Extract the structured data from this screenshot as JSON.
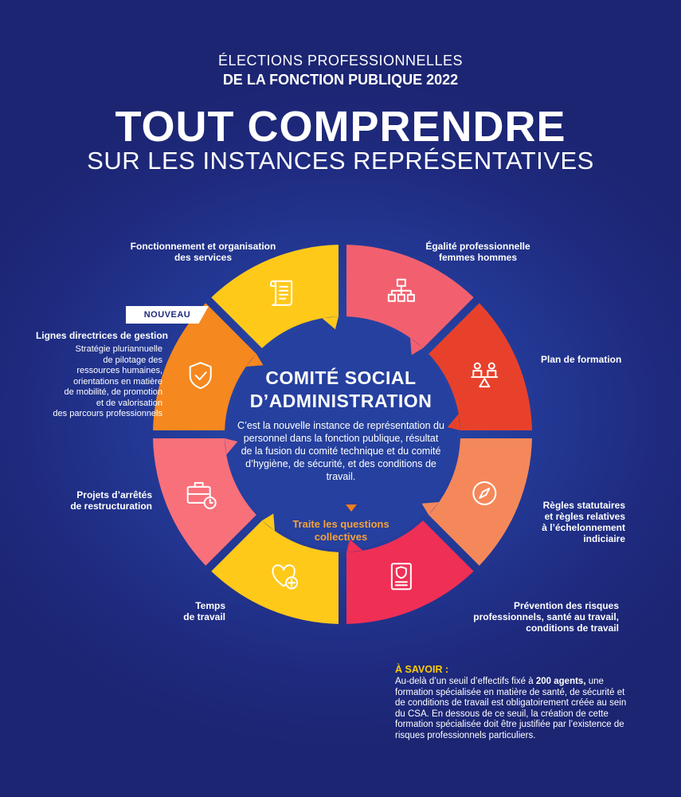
{
  "header": {
    "line1": "ÉLECTIONS PROFESSIONNELLES",
    "line2": "DE LA FONCTION PUBLIQUE 2022",
    "title": "TOUT COMPRENDRE",
    "subtitle": "SUR LES INSTANCES REPRÉSENTATIVES"
  },
  "center": {
    "title_line1": "COMITÉ SOCIAL",
    "title_line2": "D’ADMINISTRATION",
    "description": "C’est la nouvelle instance de représentation du personnel dans la fonction publique, résultat de la fusion du comité technique et du comité d’hygiène, de sécurité, et des conditions de travail.",
    "cta": "Traite les questions collectives"
  },
  "badge": "NOUVEAU",
  "segments": [
    {
      "id": "fonctionnement",
      "label_lines": [
        "Fonctionnement et organisation",
        "des services"
      ],
      "color": "#f2606f",
      "icon": "org-chart-icon"
    },
    {
      "id": "egalite",
      "label_lines": [
        "Égalité professionnelle",
        "femmes hommes"
      ],
      "color": "#e8412b",
      "icon": "equality-scale-icon"
    },
    {
      "id": "formation",
      "label_lines": [
        "Plan de formation"
      ],
      "color": "#f5885a",
      "icon": "compass-icon"
    },
    {
      "id": "regles",
      "label_lines": [
        "Règles statutaires",
        "et règles relatives",
        "à l’échelonnement",
        "indiciaire"
      ],
      "color": "#f02f55",
      "icon": "id-document-icon"
    },
    {
      "id": "prevention",
      "label_lines": [
        "Prévention des risques",
        "professionnels, santé au travail,",
        "conditions de travail"
      ],
      "color": "#ffc91a",
      "icon": "heart-plus-icon"
    },
    {
      "id": "temps",
      "label_lines": [
        "Temps",
        "de travail"
      ],
      "color": "#f8707a",
      "icon": "briefcase-clock-icon"
    },
    {
      "id": "projets",
      "label_lines": [
        "Projets d’arrêtés",
        "de restructuration"
      ],
      "color": "#f5881f",
      "icon": "shield-check-icon"
    },
    {
      "id": "lignes",
      "label_lines": [
        "Lignes directrices de gestion"
      ],
      "color": "#ffc91a",
      "icon": "scroll-icon"
    }
  ],
  "lignes_detail_lines": [
    "Stratégie pluriannuelle",
    "de pilotage des",
    "ressources humaines,",
    "orientations en matière",
    "de mobilité, de promotion",
    "et de valorisation",
    "des parcours professionnels"
  ],
  "savoir": {
    "title": "À SAVOIR :",
    "text_before_bold": "Au-delà d’un seuil d’effectifs fixé à ",
    "bold": "200 agents,",
    "text_after_bold": " une formation spécialisée en matière de santé, de sécurité et de conditions de travail est obligatoirement créée au sein du CSA. En dessous de ce seuil, la création de cette formation spécialisée doit être justifiée par l’existence de risques professionnels particuliers."
  }
}
